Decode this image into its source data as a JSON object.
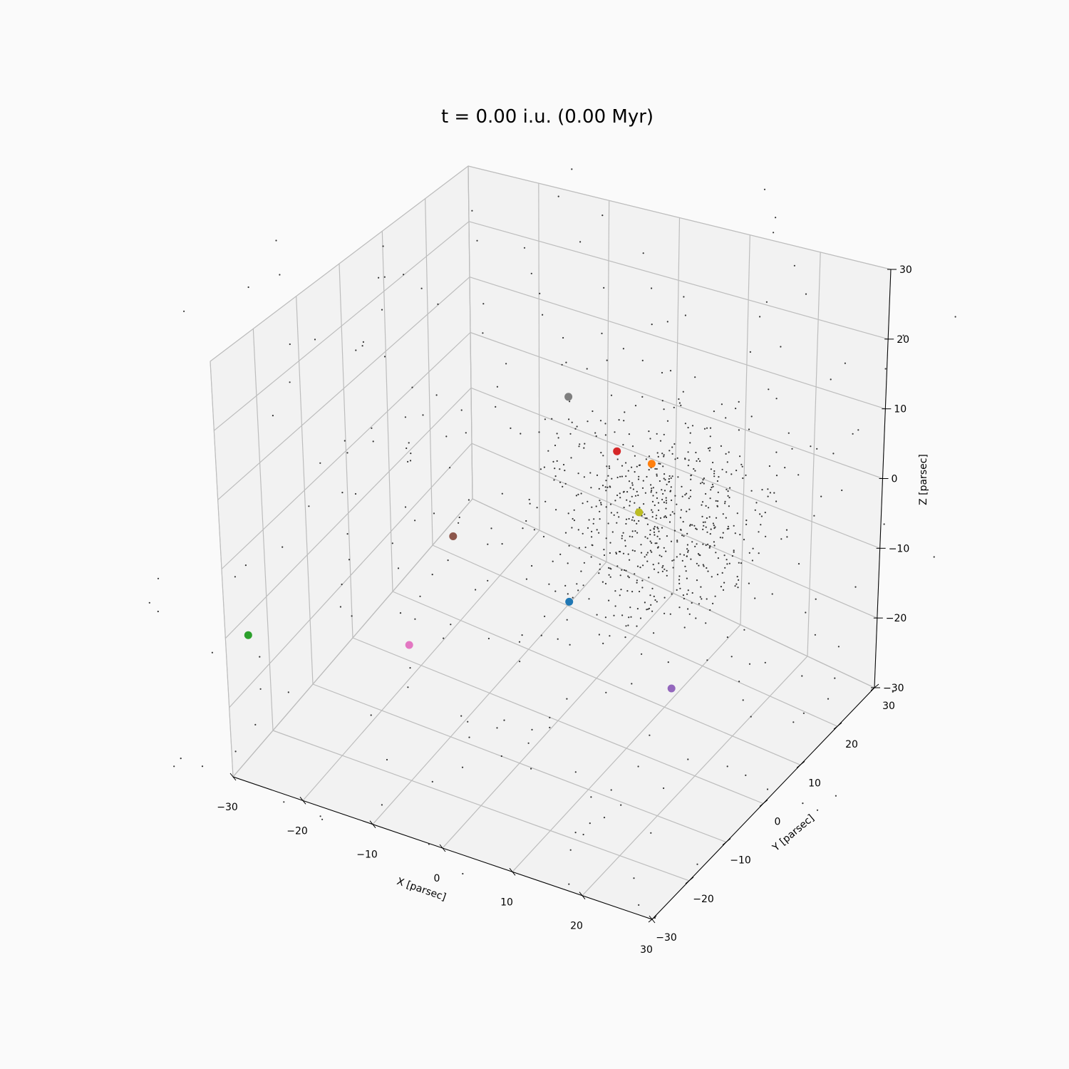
{
  "chart_data": {
    "type": "scatter",
    "projection": "3d",
    "title": "t = 0.00 i.u. (0.00 Myr)",
    "xlabel": "X [parsec]",
    "ylabel": "Y [parsec]",
    "zlabel": "Z [parsec]",
    "xlim": [
      -30,
      30
    ],
    "ylim": [
      -30,
      30
    ],
    "zlim": [
      -30,
      30
    ],
    "ticks": [
      -30,
      -20,
      -10,
      0,
      10,
      20,
      30
    ],
    "tick_labels": [
      "−30",
      "−20",
      "−10",
      "0",
      "10",
      "20",
      "30"
    ],
    "grid": true,
    "background_color": "#fafafa",
    "pane_edge_color": "#c8c8c8",
    "field_star_color": "#333333",
    "field_stars": {
      "count": 900,
      "distribution": "centrally concentrated cluster, 0 to ~40 parsec",
      "marker_size": "small"
    },
    "highlighted_stars": [
      {
        "color": "#1f77b4",
        "x": -3,
        "y": 8,
        "z": -18
      },
      {
        "color": "#ff7f0e",
        "x": 2,
        "y": 20,
        "z": -2
      },
      {
        "color": "#2ca02c",
        "x": -28,
        "y": -28,
        "z": -10
      },
      {
        "color": "#d62728",
        "x": -3,
        "y": 20,
        "z": -2
      },
      {
        "color": "#9467bd",
        "x": 12,
        "y": 8,
        "z": -25
      },
      {
        "color": "#8c564b",
        "x": -18,
        "y": 5,
        "z": -12
      },
      {
        "color": "#e377c2",
        "x": -17,
        "y": -8,
        "z": -20
      },
      {
        "color": "#7f7f7f",
        "x": -10,
        "y": 20,
        "z": 4
      },
      {
        "color": "#bcbd22",
        "x": 3,
        "y": 15,
        "z": -6
      }
    ]
  }
}
